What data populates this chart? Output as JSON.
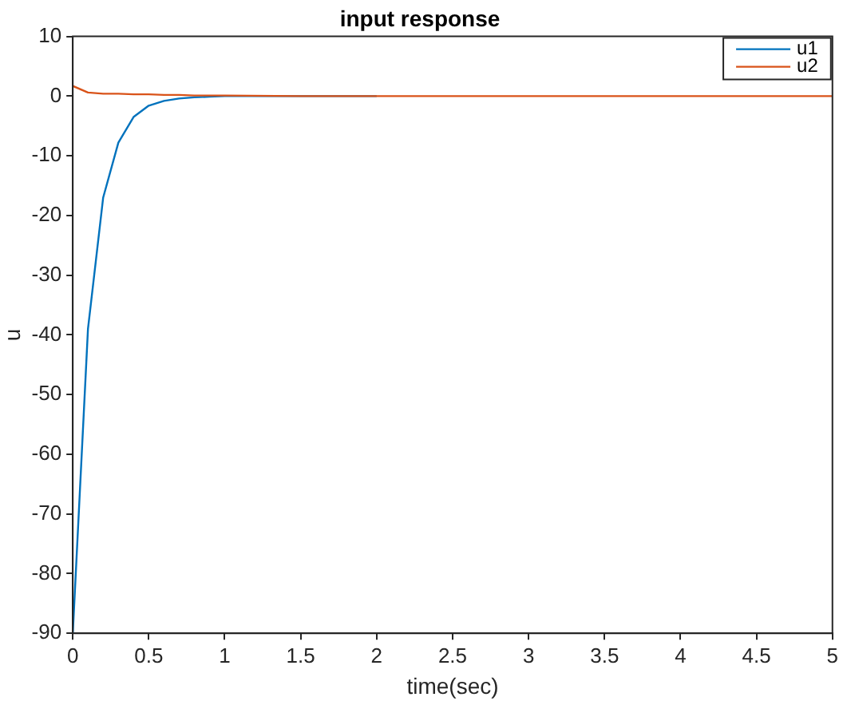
{
  "chart_data": {
    "type": "line",
    "title": "input response",
    "xlabel": "time(sec)",
    "ylabel": "u",
    "xlim": [
      0,
      5
    ],
    "xticks": [
      0,
      0.5,
      1,
      1.5,
      2,
      2.5,
      3,
      3.5,
      4,
      4.5,
      5
    ],
    "ylim": [
      -90,
      10
    ],
    "yticks": [
      -90,
      -80,
      -70,
      -60,
      -50,
      -40,
      -30,
      -20,
      -10,
      0,
      10
    ],
    "grid": false,
    "legend": "top right",
    "marker": "none",
    "line_style": "solid",
    "x": [
      0,
      0.1,
      0.2,
      0.3,
      0.4,
      0.5,
      0.6,
      0.7,
      0.8,
      0.9,
      1,
      1.5,
      2,
      2.5,
      3,
      3.5,
      4,
      4.5,
      5
    ],
    "series": [
      {
        "name": "u1",
        "color": "#0072bd",
        "values": [
          -90,
          -39,
          -17,
          -7.8,
          -3.5,
          -1.6,
          -0.8,
          -0.4,
          -0.2,
          -0.1,
          0,
          0,
          0,
          null,
          null,
          null,
          null,
          null,
          null
        ]
      },
      {
        "name": "u2",
        "color": "#d95319",
        "values": [
          1.7,
          0.6,
          0.4,
          0.4,
          0.3,
          0.3,
          0.2,
          0.2,
          0.1,
          0.1,
          0.1,
          0,
          0,
          0,
          0,
          0,
          0,
          0,
          0
        ]
      }
    ]
  }
}
